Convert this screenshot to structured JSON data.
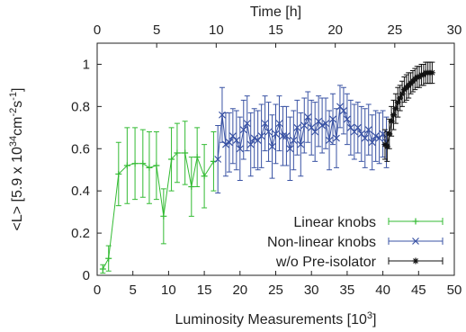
{
  "chart_data": {
    "type": "line",
    "xlabel": "Luminosity Measurements [10",
    "xlabel_sup": "3",
    "xlabel_end": "]",
    "x2label": "Time [h]",
    "ylabel_parts": [
      "<L> [5.9 x 10",
      "34",
      "cm",
      "-2",
      "s",
      "-1",
      "]"
    ],
    "xlim": [
      0,
      50
    ],
    "x2lim": [
      0,
      30
    ],
    "ylim": [
      0,
      1.1
    ],
    "xticks": [
      "0",
      "5",
      "10",
      "15",
      "20",
      "25",
      "30",
      "35",
      "40",
      "45",
      "50"
    ],
    "x2ticks": [
      "0",
      "5",
      "10",
      "15",
      "20",
      "25",
      "30"
    ],
    "yticks": [
      "0",
      "0.2",
      "0.4",
      "0.6",
      "0.8",
      "1"
    ],
    "legend_position": "bottom-right",
    "series": [
      {
        "name": "Linear knobs",
        "color": "#33bb33",
        "marker": "plus",
        "x": [
          0.8,
          1.6,
          3.0,
          4.2,
          5.3,
          6.4,
          7.3,
          8.3,
          9.3,
          10.4,
          11.2,
          12.3,
          13.2,
          14.0,
          15.0,
          16.3
        ],
        "y": [
          0.03,
          0.08,
          0.48,
          0.52,
          0.53,
          0.53,
          0.51,
          0.52,
          0.28,
          0.55,
          0.58,
          0.58,
          0.42,
          0.56,
          0.47,
          0.54
        ],
        "err": [
          0.02,
          0.06,
          0.15,
          0.18,
          0.17,
          0.16,
          0.17,
          0.16,
          0.13,
          0.15,
          0.14,
          0.15,
          0.14,
          0.14,
          0.15,
          0.14
        ]
      },
      {
        "name": "Non-linear knobs",
        "color": "#3a53a4",
        "marker": "cross",
        "x": [
          16.9,
          17.5,
          18.0,
          18.5,
          19.0,
          19.5,
          20.0,
          20.5,
          21.0,
          21.5,
          22.0,
          22.5,
          23.0,
          23.5,
          24.0,
          24.5,
          25.0,
          25.5,
          26.0,
          26.5,
          27.0,
          27.5,
          28.0,
          28.5,
          29.0,
          29.5,
          30.0,
          30.5,
          31.0,
          31.5,
          32.0,
          32.5,
          33.0,
          33.5,
          34.0,
          34.5,
          35.0,
          35.5,
          36.0,
          36.5,
          37.0,
          37.5,
          38.0,
          38.5,
          39.0,
          39.5,
          40.0,
          40.5
        ],
        "y": [
          0.55,
          0.76,
          0.62,
          0.63,
          0.66,
          0.64,
          0.6,
          0.69,
          0.72,
          0.62,
          0.65,
          0.64,
          0.66,
          0.72,
          0.68,
          0.61,
          0.67,
          0.72,
          0.66,
          0.66,
          0.6,
          0.64,
          0.7,
          0.62,
          0.71,
          0.75,
          0.7,
          0.68,
          0.73,
          0.71,
          0.72,
          0.64,
          0.74,
          0.65,
          0.8,
          0.78,
          0.74,
          0.7,
          0.68,
          0.7,
          0.67,
          0.65,
          0.69,
          0.63,
          0.66,
          0.65,
          0.67,
          0.63
        ],
        "err": [
          0.16,
          0.13,
          0.15,
          0.14,
          0.13,
          0.14,
          0.15,
          0.14,
          0.13,
          0.15,
          0.14,
          0.14,
          0.15,
          0.13,
          0.14,
          0.15,
          0.14,
          0.13,
          0.14,
          0.14,
          0.15,
          0.14,
          0.13,
          0.15,
          0.13,
          0.12,
          0.13,
          0.14,
          0.12,
          0.13,
          0.12,
          0.14,
          0.12,
          0.14,
          0.1,
          0.11,
          0.12,
          0.13,
          0.13,
          0.12,
          0.13,
          0.14,
          0.12,
          0.13,
          0.12,
          0.12,
          0.11,
          0.12
        ]
      },
      {
        "name": "w/o Pre-isolator",
        "color": "#111111",
        "marker": "star",
        "x": [
          40.3,
          40.6,
          40.9,
          41.2,
          41.5,
          41.8,
          42.1,
          42.4,
          42.7,
          43.0,
          43.3,
          43.6,
          43.9,
          44.2,
          44.5,
          44.8,
          45.1,
          45.4,
          45.7,
          46.0,
          46.3,
          46.6,
          46.9
        ],
        "y": [
          0.62,
          0.61,
          0.67,
          0.73,
          0.76,
          0.79,
          0.82,
          0.84,
          0.86,
          0.88,
          0.89,
          0.9,
          0.91,
          0.92,
          0.93,
          0.94,
          0.94,
          0.95,
          0.95,
          0.96,
          0.96,
          0.96,
          0.96
        ],
        "err": [
          0.07,
          0.07,
          0.07,
          0.07,
          0.07,
          0.07,
          0.07,
          0.06,
          0.06,
          0.06,
          0.06,
          0.06,
          0.05,
          0.05,
          0.05,
          0.05,
          0.05,
          0.05,
          0.05,
          0.05,
          0.05,
          0.05,
          0.05
        ]
      }
    ]
  }
}
